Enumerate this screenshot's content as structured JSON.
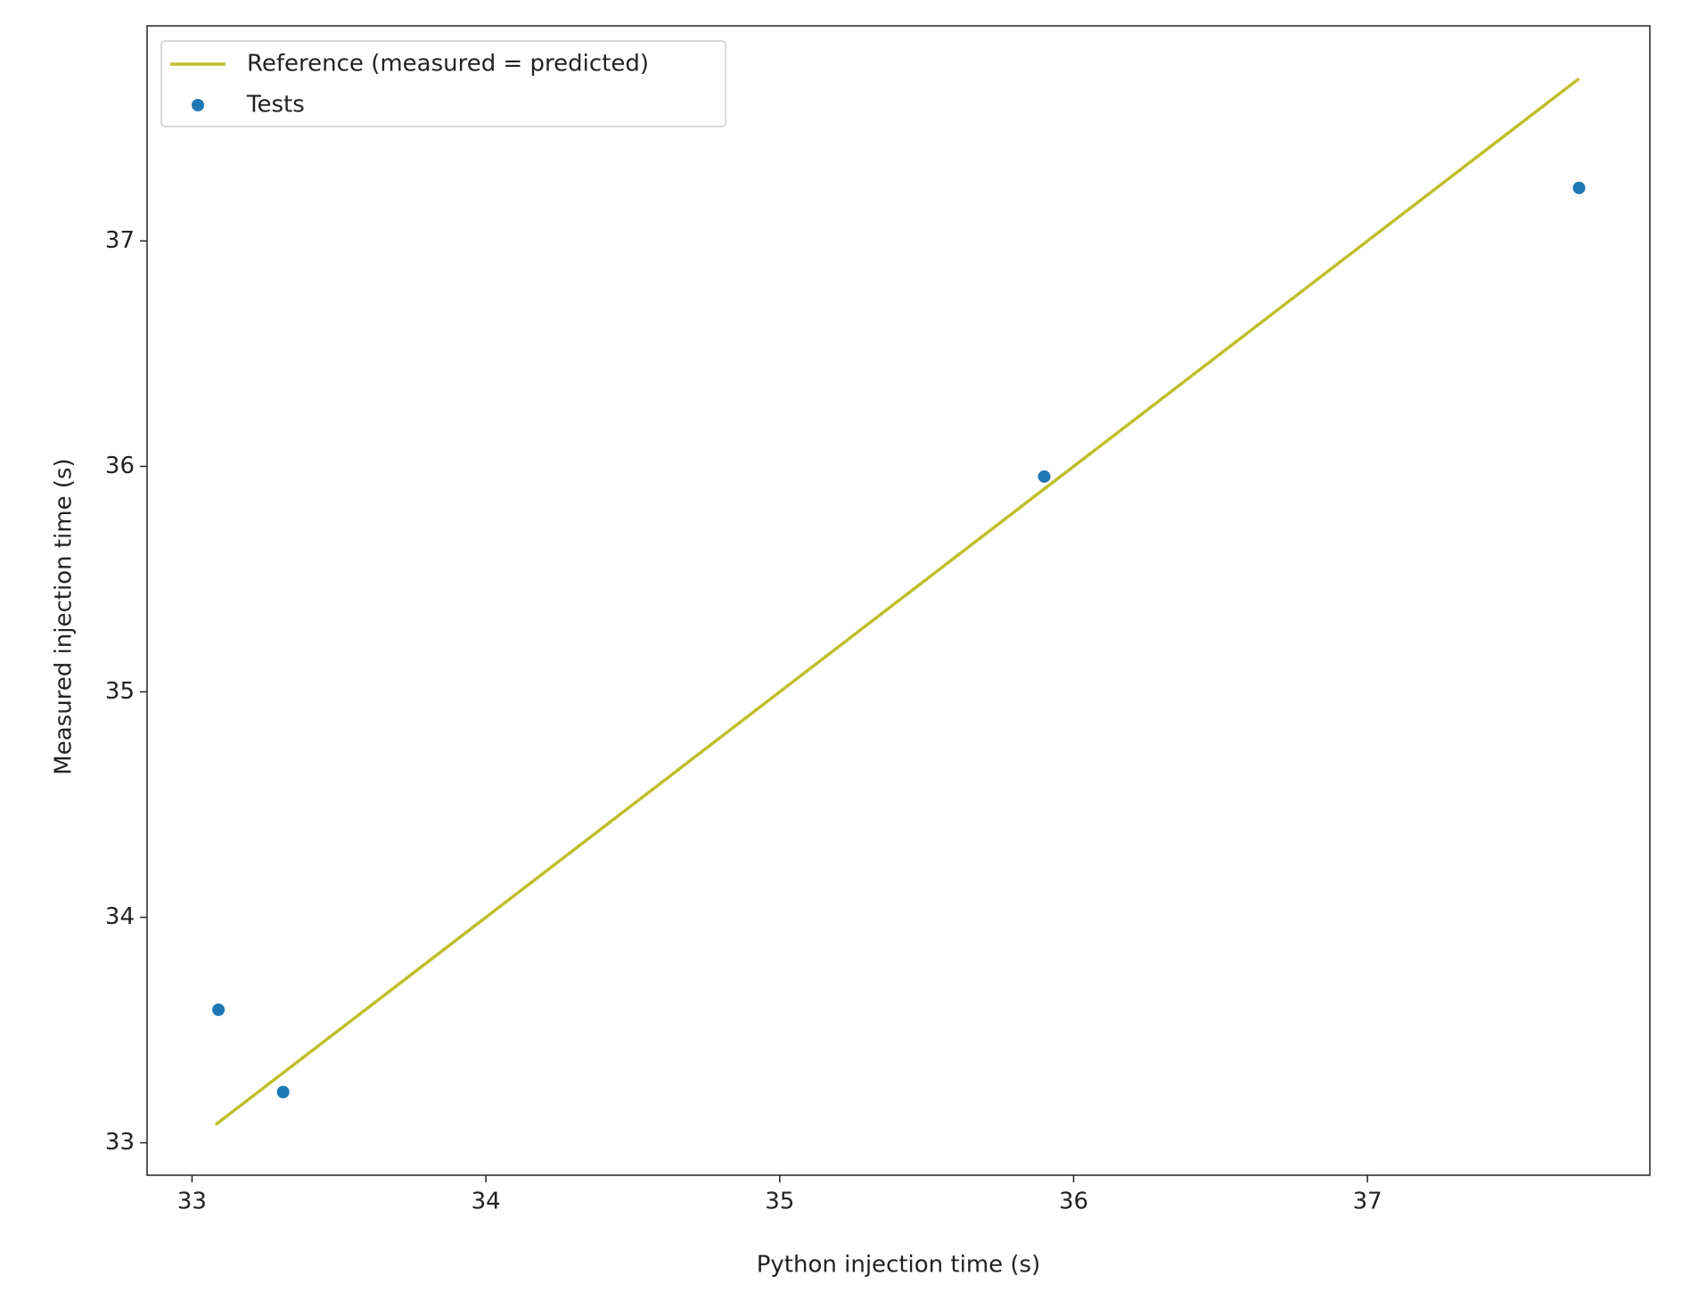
{
  "chart_data": {
    "type": "scatter",
    "xlabel": "Python injection time (s)",
    "ylabel": "Measured injection time (s)",
    "xlim": [
      32.847,
      37.961
    ],
    "ylim": [
      32.856,
      37.954
    ],
    "xticks": [
      33,
      34,
      35,
      36,
      37
    ],
    "yticks": [
      33,
      34,
      35,
      36,
      37
    ],
    "legend": "upper left",
    "series": [
      {
        "name": "Reference (measured = predicted)",
        "color": "#bfbf2a",
        "type": "line",
        "x": [
          33.08,
          37.72
        ],
        "values": [
          33.08,
          37.72
        ]
      },
      {
        "name": "Tests",
        "color": "#1f77b4",
        "type": "scatter",
        "x": [
          33.09,
          33.31,
          35.9,
          37.72
        ],
        "values": [
          33.59,
          33.225,
          35.955,
          37.235
        ]
      }
    ]
  }
}
